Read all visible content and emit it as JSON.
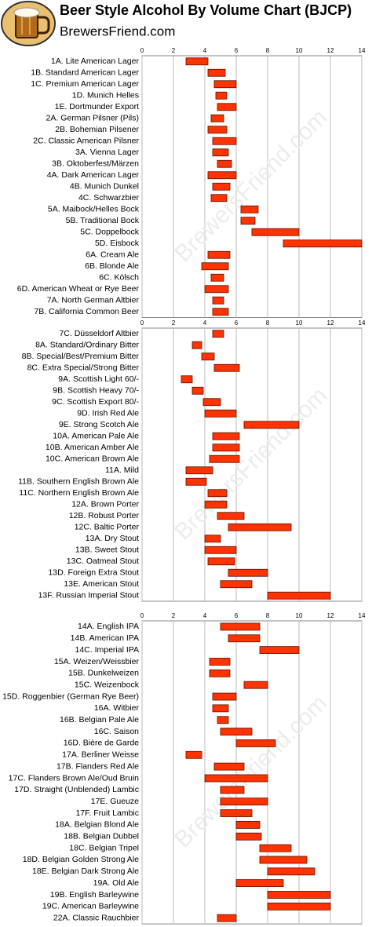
{
  "header": {
    "title": "Beer Style Alcohol By Volume Chart (BJCP)",
    "site": "BrewersFriend.com"
  },
  "chart_data": [
    {
      "type": "range-bar",
      "color": "#ff3300",
      "grid": true,
      "xlim": [
        0,
        14
      ],
      "xticks": [
        0,
        2,
        4,
        6,
        8,
        10,
        12,
        14
      ],
      "categories": [
        "1A. Lite American Lager",
        "1B. Standard American Lager",
        "1C. Premium American Lager",
        "1D. Munich Helles",
        "1E. Dortmunder Export",
        "2A. German Pilsner (Pils)",
        "2B. Bohemian Pilsener",
        "2C. Classic American Pilsner",
        "3A. Vienna Lager",
        "3B. Oktoberfest/Märzen",
        "4A. Dark American Lager",
        "4B. Munich Dunkel",
        "4C. Schwarzbier",
        "5A. Maibock/Helles Bock",
        "5B. Traditional Bock",
        "5C. Doppelbock",
        "5D. Eisbock",
        "6A. Cream Ale",
        "6B. Blonde Ale",
        "6C. Kölsch",
        "6D. American Wheat or Rye Beer",
        "7A. North German Altbier",
        "7B. California Common Beer"
      ],
      "low": [
        2.8,
        4.2,
        4.6,
        4.7,
        4.8,
        4.4,
        4.2,
        4.5,
        4.5,
        4.8,
        4.2,
        4.5,
        4.4,
        6.3,
        6.3,
        7.0,
        9.0,
        4.2,
        3.8,
        4.4,
        4.0,
        4.5,
        4.5
      ],
      "high": [
        4.2,
        5.3,
        6.0,
        5.4,
        6.0,
        5.2,
        5.4,
        6.0,
        5.5,
        5.7,
        6.0,
        5.6,
        5.4,
        7.4,
        7.2,
        10.0,
        14.0,
        5.6,
        5.5,
        5.2,
        5.5,
        5.2,
        5.5
      ]
    },
    {
      "type": "range-bar",
      "color": "#ff3300",
      "grid": true,
      "xlim": [
        0,
        14
      ],
      "xticks": [
        0,
        2,
        4,
        6,
        8,
        10,
        12,
        14
      ],
      "categories": [
        "7C. Düsseldorf Altbier",
        "8A. Standard/Ordinary Bitter",
        "8B. Special/Best/Premium Bitter",
        "8C. Extra Special/Strong Bitter",
        "9A. Scottish Light 60/-",
        "9B. Scottish Heavy 70/-",
        "9C. Scottish Export 80/-",
        "9D. Irish Red Ale",
        "9E. Strong Scotch Ale",
        "10A. American Pale Ale",
        "10B. American Amber Ale",
        "10C. American Brown Ale",
        "11A. Mild",
        "11B. Southern English Brown Ale",
        "11C. Northern English Brown Ale",
        "12A. Brown Porter",
        "12B. Robust Porter",
        "12C. Baltic Porter",
        "13A. Dry Stout",
        "13B. Sweet Stout",
        "13C. Oatmeal Stout",
        "13D. Foreign Extra Stout",
        "13E. American Stout",
        "13F. Russian Imperial Stout"
      ],
      "low": [
        4.5,
        3.2,
        3.8,
        4.6,
        2.5,
        3.2,
        3.9,
        4.0,
        6.5,
        4.5,
        4.5,
        4.3,
        2.8,
        2.8,
        4.2,
        4.0,
        4.8,
        5.5,
        4.0,
        4.0,
        4.2,
        5.5,
        5.0,
        8.0
      ],
      "high": [
        5.2,
        3.8,
        4.6,
        6.2,
        3.2,
        3.9,
        5.0,
        6.0,
        10.0,
        6.2,
        6.2,
        6.2,
        4.5,
        4.1,
        5.4,
        5.4,
        6.5,
        9.5,
        5.0,
        6.0,
        5.9,
        8.0,
        7.0,
        12.0
      ]
    },
    {
      "type": "range-bar",
      "color": "#ff3300",
      "grid": true,
      "xlim": [
        0,
        14
      ],
      "xticks": [
        0,
        2,
        4,
        6,
        8,
        10,
        12,
        14
      ],
      "categories": [
        "14A. English IPA",
        "14B. American IPA",
        "14C. Imperial IPA",
        "15A. Weizen/Weissbier",
        "15B. Dunkelweizen",
        "15C. Weizenbock",
        "15D. Roggenbier (German Rye Beer)",
        "16A. Witbier",
        "16B. Belgian Pale Ale",
        "16C. Saison",
        "16D. Bière de Garde",
        "17A. Berliner Weisse",
        "17B. Flanders Red Ale",
        "17C. Flanders Brown Ale/Oud Bruin",
        "17D. Straight (Unblended) Lambic",
        "17E. Gueuze",
        "17F. Fruit Lambic",
        "18A. Belgian Blond Ale",
        "18B. Belgian Dubbel",
        "18C. Belgian Tripel",
        "18D. Belgian Golden Strong Ale",
        "18E. Belgian Dark Strong Ale",
        "19A. Old Ale",
        "19B. English Barleywine",
        "19C. American Barleywine",
        "22A. Classic Rauchbier"
      ],
      "low": [
        5.0,
        5.5,
        7.5,
        4.3,
        4.3,
        6.5,
        4.5,
        4.5,
        4.8,
        5.0,
        6.0,
        2.8,
        4.6,
        4.0,
        5.0,
        5.0,
        5.0,
        6.0,
        6.0,
        7.5,
        7.5,
        8.0,
        6.0,
        8.0,
        8.0,
        4.8
      ],
      "high": [
        7.5,
        7.5,
        10.0,
        5.6,
        5.6,
        8.0,
        6.0,
        5.5,
        5.5,
        7.0,
        8.5,
        3.8,
        6.5,
        8.0,
        6.5,
        8.0,
        7.0,
        7.5,
        7.6,
        9.5,
        10.5,
        11.0,
        9.0,
        12.0,
        12.0,
        6.0
      ]
    }
  ]
}
